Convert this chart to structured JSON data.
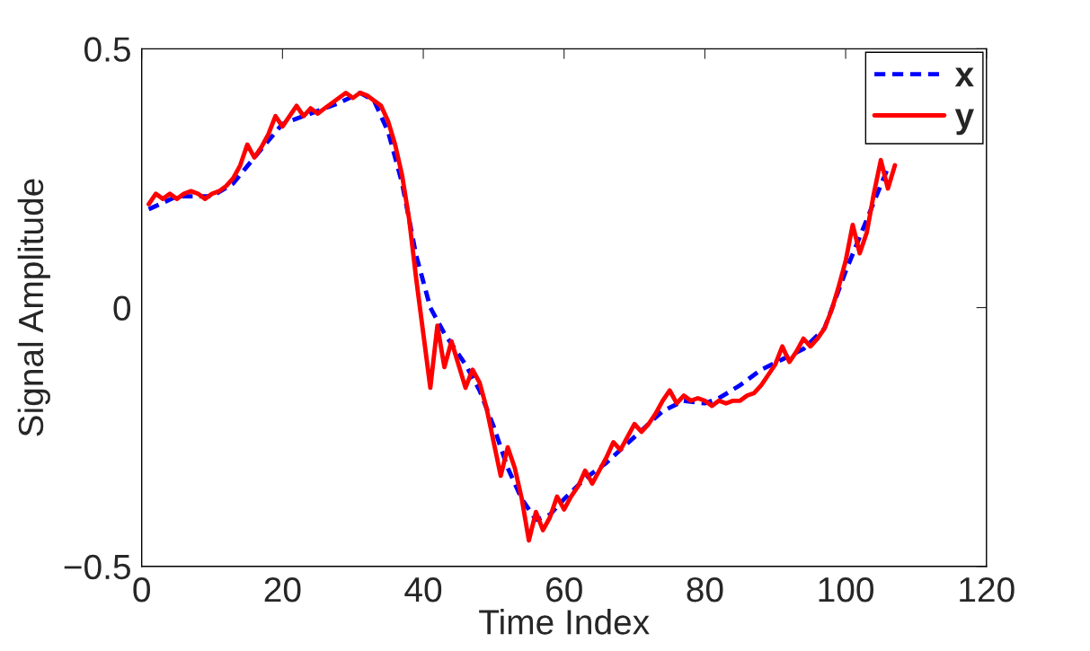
{
  "chart_data": {
    "type": "line",
    "xlabel": "Time Index",
    "ylabel": "Signal Amplitude",
    "xlim": [
      0,
      120
    ],
    "xticks": [
      0,
      20,
      40,
      60,
      80,
      100,
      120
    ],
    "ylim": [
      -0.5,
      0.5
    ],
    "yticks": [
      {
        "value": -0.5,
        "label": "−0.5"
      },
      0,
      0.5
    ],
    "grid": false,
    "legend": "top right",
    "series": [
      {
        "name": "x",
        "color": "#0000ff",
        "line_style": "dashed",
        "x": [
          1,
          5,
          10,
          13,
          16,
          20,
          25,
          28,
          31,
          33,
          35,
          37,
          39,
          41,
          43,
          46,
          48,
          50,
          52,
          54,
          56,
          58,
          60,
          63,
          66,
          70,
          74,
          77,
          80,
          82,
          85,
          88,
          91,
          94,
          97,
          100,
          103,
          106
        ],
        "values": [
          0.19,
          0.215,
          0.215,
          0.24,
          0.29,
          0.355,
          0.38,
          0.395,
          0.415,
          0.4,
          0.34,
          0.24,
          0.1,
          0.0,
          -0.05,
          -0.11,
          -0.16,
          -0.23,
          -0.31,
          -0.37,
          -0.41,
          -0.4,
          -0.37,
          -0.33,
          -0.3,
          -0.25,
          -0.2,
          -0.18,
          -0.185,
          -0.175,
          -0.15,
          -0.12,
          -0.1,
          -0.08,
          -0.04,
          0.07,
          0.17,
          0.27
        ]
      },
      {
        "name": "y",
        "color": "#ff0000",
        "line_style": "solid",
        "x": [
          1,
          2,
          3,
          4,
          5,
          6,
          7,
          8,
          9,
          10,
          11,
          12,
          13,
          14,
          15,
          16,
          17,
          18,
          19,
          20,
          21,
          22,
          23,
          24,
          25,
          26,
          27,
          28,
          29,
          30,
          31,
          32,
          33,
          34,
          35,
          36,
          37,
          38,
          39,
          40,
          41,
          42,
          43,
          44,
          45,
          46,
          47,
          48,
          49,
          50,
          51,
          52,
          53,
          54,
          55,
          56,
          57,
          58,
          59,
          60,
          61,
          62,
          63,
          64,
          65,
          66,
          67,
          68,
          69,
          70,
          71,
          72,
          73,
          74,
          75,
          76,
          77,
          78,
          79,
          80,
          81,
          82,
          83,
          84,
          85,
          86,
          87,
          88,
          89,
          90,
          91,
          92,
          93,
          94,
          95,
          96,
          97,
          98,
          99,
          100,
          101,
          102,
          103,
          104,
          105,
          106,
          107
        ],
        "values": [
          0.2,
          0.22,
          0.21,
          0.22,
          0.21,
          0.22,
          0.225,
          0.22,
          0.21,
          0.22,
          0.225,
          0.235,
          0.25,
          0.275,
          0.315,
          0.29,
          0.31,
          0.335,
          0.37,
          0.35,
          0.37,
          0.39,
          0.37,
          0.385,
          0.375,
          0.385,
          0.395,
          0.405,
          0.415,
          0.405,
          0.415,
          0.41,
          0.4,
          0.39,
          0.36,
          0.315,
          0.255,
          0.17,
          0.055,
          -0.05,
          -0.155,
          -0.035,
          -0.115,
          -0.065,
          -0.11,
          -0.155,
          -0.12,
          -0.145,
          -0.195,
          -0.26,
          -0.325,
          -0.27,
          -0.31,
          -0.37,
          -0.45,
          -0.395,
          -0.43,
          -0.405,
          -0.365,
          -0.39,
          -0.365,
          -0.345,
          -0.315,
          -0.34,
          -0.315,
          -0.29,
          -0.26,
          -0.275,
          -0.25,
          -0.225,
          -0.24,
          -0.225,
          -0.205,
          -0.18,
          -0.16,
          -0.185,
          -0.17,
          -0.18,
          -0.175,
          -0.18,
          -0.19,
          -0.18,
          -0.185,
          -0.18,
          -0.18,
          -0.17,
          -0.165,
          -0.15,
          -0.13,
          -0.11,
          -0.075,
          -0.105,
          -0.085,
          -0.06,
          -0.075,
          -0.06,
          -0.04,
          -0.005,
          0.04,
          0.09,
          0.16,
          0.105,
          0.145,
          0.22,
          0.285,
          0.23,
          0.275
        ]
      }
    ]
  }
}
